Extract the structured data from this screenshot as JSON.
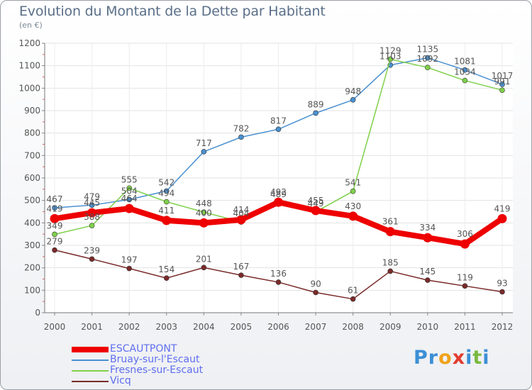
{
  "header": {
    "title": "Evolution du Montant de la Dette par Habitant",
    "subtitle": "(en €)"
  },
  "logo": {
    "text": "Proxiti",
    "letters": [
      {
        "ch": "P",
        "color": "#3c8fd6"
      },
      {
        "ch": "r",
        "color": "#3c8fd6"
      },
      {
        "ch": "o",
        "color": "#f1a21a"
      },
      {
        "ch": "x",
        "color": "#e23b2e"
      },
      {
        "ch": "i",
        "color": "#3c8fd6"
      },
      {
        "ch": "t",
        "color": "#7ab940"
      },
      {
        "ch": "i",
        "color": "#3c8fd6"
      }
    ]
  },
  "chart_data": {
    "type": "line",
    "title": "Evolution du Montant de la Dette par Habitant",
    "subtitle": "(en €)",
    "xlabel": "",
    "ylabel": "",
    "ylim": [
      0,
      1200
    ],
    "yticks": [
      0,
      100,
      200,
      300,
      400,
      500,
      600,
      700,
      800,
      900,
      1000,
      1100,
      1200
    ],
    "x": [
      2000,
      2001,
      2002,
      2003,
      2004,
      2005,
      2006,
      2007,
      2008,
      2009,
      2010,
      2011,
      2012
    ],
    "grid": true,
    "legend_position": "bottom-left",
    "series": [
      {
        "name": "ESCAUTPONT",
        "color": "#ee0000",
        "values": [
          419,
          445,
          464,
          411,
          400,
          414,
          492,
          455,
          430,
          361,
          334,
          306,
          419
        ]
      },
      {
        "name": "Bruay-sur-l'Escaut",
        "color": "#4a90d0",
        "values": [
          467,
          479,
          504,
          542,
          717,
          782,
          817,
          889,
          948,
          1103,
          1135,
          1081,
          1017
        ]
      },
      {
        "name": "Fresnes-sur-Escaut",
        "color": "#7fd04a",
        "values": [
          349,
          388,
          555,
          494,
          448,
          404,
          489,
          449,
          541,
          1129,
          1092,
          1034,
          991
        ]
      },
      {
        "name": "Vicq",
        "color": "#7a2a2a",
        "values": [
          279,
          239,
          197,
          154,
          201,
          167,
          136,
          90,
          61,
          185,
          145,
          119,
          93
        ]
      }
    ]
  }
}
